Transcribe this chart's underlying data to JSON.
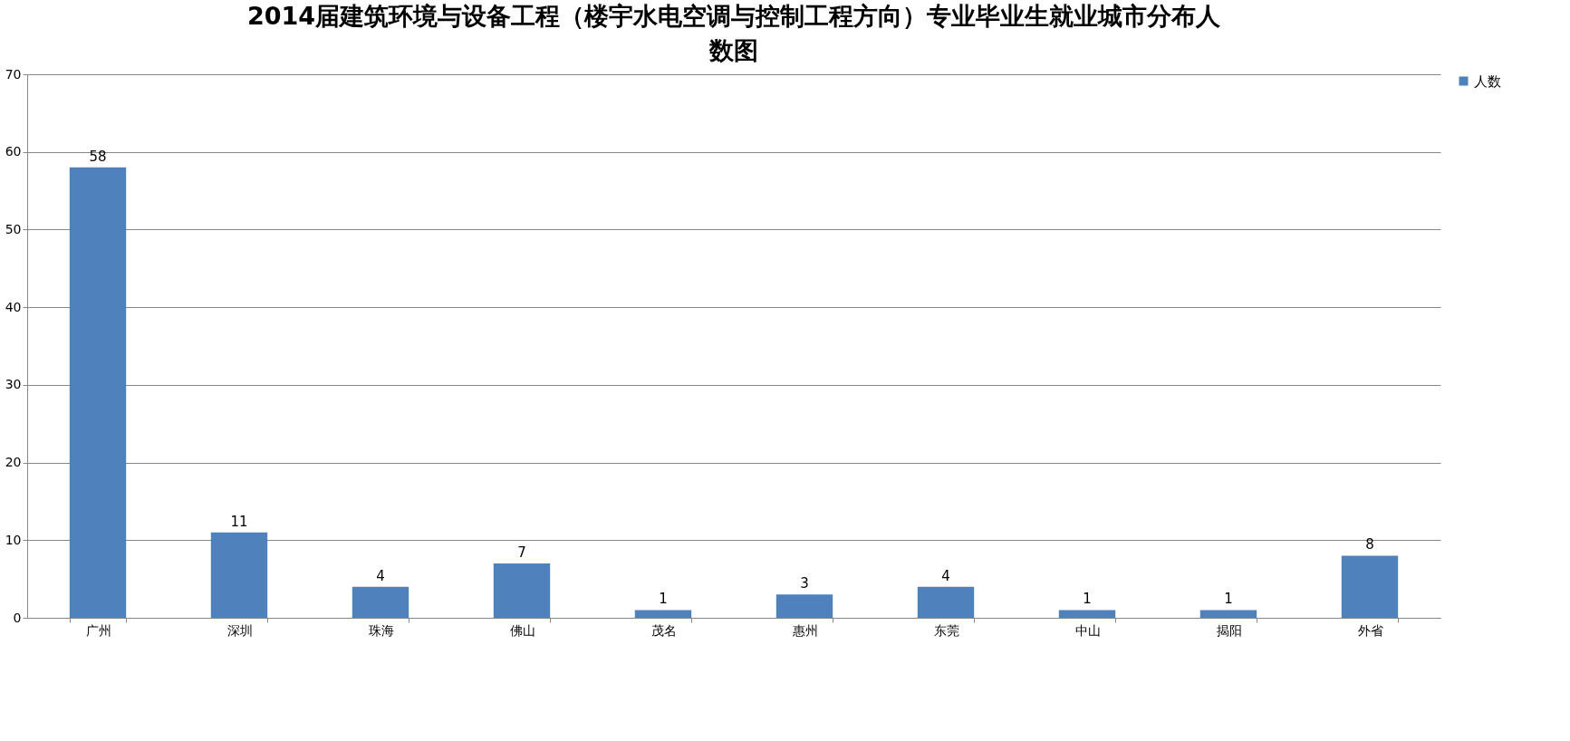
{
  "chart_data": {
    "type": "bar",
    "title": "2014届建筑环境与设备工程（楼宇水电空调与控制工程方向）专业毕业生就业城市分布人数图",
    "categories": [
      "广州",
      "深圳",
      "珠海",
      "佛山",
      "茂名",
      "惠州",
      "东莞",
      "中山",
      "揭阳",
      "外省"
    ],
    "series": [
      {
        "name": "人数",
        "color": "#4f81bd",
        "values": [
          58,
          11,
          4,
          7,
          1,
          3,
          4,
          1,
          1,
          8
        ]
      }
    ],
    "ylim": [
      0,
      70
    ],
    "yticks": [
      0,
      10,
      20,
      30,
      40,
      50,
      60,
      70
    ],
    "grid": "y",
    "legend": "right",
    "data_labels": true
  }
}
